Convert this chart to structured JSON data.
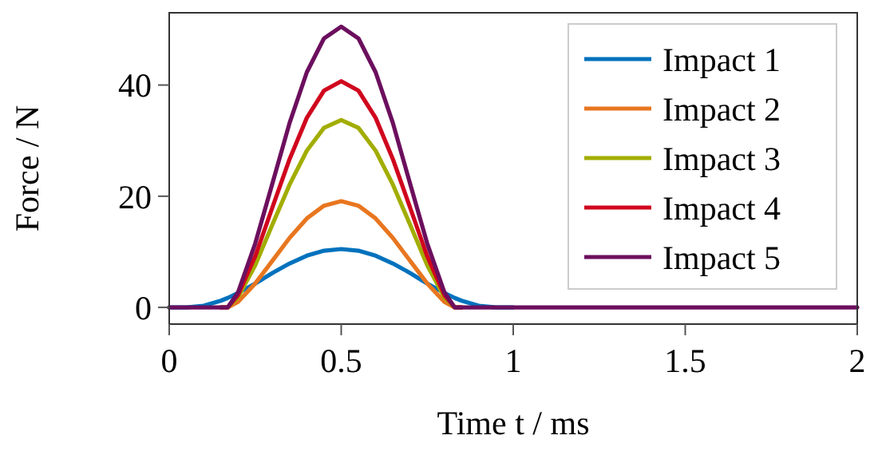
{
  "chart_data": {
    "type": "line",
    "xlabel": "Time t / ms",
    "ylabel": "Force / N",
    "x": [
      0,
      0.05,
      0.1,
      0.15,
      0.17,
      0.2,
      0.25,
      0.3,
      0.35,
      0.4,
      0.45,
      0.5,
      0.55,
      0.6,
      0.65,
      0.7,
      0.75,
      0.8,
      0.83,
      0.85,
      0.9,
      0.95,
      1,
      1.5,
      2
    ],
    "series": [
      {
        "name": "Impact 1",
        "color": "#0072bd",
        "x": [
          0,
          0.05,
          0.1,
          0.15,
          0.17,
          0.2,
          0.25,
          0.3,
          0.35,
          0.4,
          0.45,
          0.5,
          0.55,
          0.6,
          0.65,
          0.7,
          0.75,
          0.8,
          0.83,
          0.85,
          0.9,
          0.95,
          1
        ],
        "values": [
          0,
          0,
          0.3,
          1.2,
          1.7,
          2.6,
          4.3,
          6.2,
          7.9,
          9.3,
          10.2,
          10.5,
          10.2,
          9.3,
          7.9,
          6.2,
          4.3,
          2.6,
          1.7,
          1.2,
          0.3,
          0,
          0
        ]
      },
      {
        "name": "Impact 2",
        "color": "#e8761f",
        "x": [
          0.15,
          0.17,
          0.2,
          0.25,
          0.3,
          0.35,
          0.4,
          0.45,
          0.5,
          0.55,
          0.6,
          0.65,
          0.7,
          0.75,
          0.8,
          0.83,
          0.85
        ],
        "values": [
          0,
          0,
          1.0,
          4.3,
          8.4,
          12.5,
          16.0,
          18.3,
          19.1,
          18.3,
          16.0,
          12.5,
          8.4,
          4.3,
          1.0,
          0,
          0
        ]
      },
      {
        "name": "Impact 3",
        "color": "#a2ad00",
        "x": [
          0.15,
          0.17,
          0.2,
          0.25,
          0.3,
          0.35,
          0.4,
          0.45,
          0.5,
          0.55,
          0.6,
          0.65,
          0.7,
          0.75,
          0.8,
          0.83,
          0.85
        ],
        "values": [
          0,
          0,
          1.8,
          7.6,
          14.9,
          22.1,
          28.2,
          32.3,
          33.7,
          32.3,
          28.2,
          22.1,
          14.9,
          7.6,
          1.8,
          0,
          0
        ]
      },
      {
        "name": "Impact 4",
        "color": "#d0061e",
        "x": [
          0.15,
          0.17,
          0.2,
          0.25,
          0.3,
          0.35,
          0.4,
          0.45,
          0.5,
          0.55,
          0.6,
          0.65,
          0.7,
          0.75,
          0.8,
          0.83,
          0.85
        ],
        "values": [
          0,
          0,
          2.2,
          9.2,
          18.0,
          26.7,
          34.1,
          39.0,
          40.7,
          39.0,
          34.1,
          26.7,
          18.0,
          9.2,
          2.2,
          0,
          0
        ]
      },
      {
        "name": "Impact 5",
        "color": "#6c0f5e",
        "values": [
          0,
          0,
          0,
          0,
          0,
          2.7,
          11.5,
          22.3,
          33.2,
          42.3,
          48.4,
          50.5,
          48.4,
          42.3,
          33.2,
          22.3,
          11.5,
          2.7,
          0,
          0,
          0,
          0,
          0,
          0,
          0
        ]
      }
    ],
    "xlim": [
      0,
      2
    ],
    "xticks": [
      0,
      0.5,
      1,
      1.5,
      2
    ],
    "ylim": [
      -3,
      53
    ],
    "yticks": [
      0,
      20,
      40
    ],
    "grid": false,
    "legend": "top right",
    "marker": "none",
    "line_style": "solid"
  }
}
